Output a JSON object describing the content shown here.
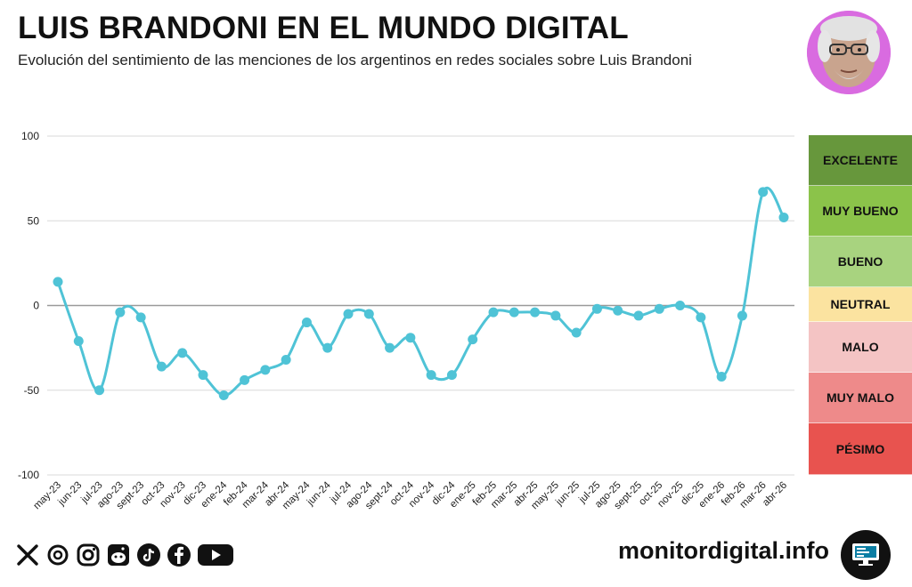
{
  "header": {
    "title": "LUIS BRANDONI EN EL MUNDO DIGITAL",
    "subtitle": "Evolución del sentimiento de las menciones de los argentinos en redes sociales sobre Luis Brandoni"
  },
  "chart_data": {
    "type": "line",
    "title": "LUIS BRANDONI EN EL MUNDO DIGITAL",
    "subtitle": "Evolución del sentimiento de las menciones de los argentinos en redes sociales sobre Luis Brandoni",
    "xlabel": "",
    "ylabel": "",
    "ylim": [
      -100,
      100
    ],
    "yticks": [
      100,
      50,
      0,
      -50,
      -100
    ],
    "grid": true,
    "line_color": "#4fc3d6",
    "categories": [
      "may-23",
      "jun-23",
      "jul-23",
      "ago-23",
      "sept-23",
      "oct-23",
      "nov-23",
      "dic-23",
      "ene-24",
      "feb-24",
      "mar-24",
      "abr-24",
      "may-24",
      "jun-24",
      "jul-24",
      "ago-24",
      "sept-24",
      "oct-24",
      "nov-24",
      "dic-24",
      "ene-25",
      "feb-25",
      "mar-25",
      "abr-25",
      "may-25",
      "jun-25",
      "jul-25",
      "ago-25",
      "sept-25",
      "oct-25",
      "nov-25",
      "dic-25",
      "ene-26",
      "feb-26",
      "mar-26",
      "abr-26"
    ],
    "values": [
      14,
      -21,
      -50,
      -4,
      -7,
      -36,
      -28,
      -41,
      -53,
      -44,
      -38,
      -32,
      -10,
      -25,
      -5,
      -5,
      -25,
      -19,
      -41,
      -41,
      -20,
      -4,
      -4,
      -4,
      -6,
      -16,
      -2,
      -3,
      -6,
      -2,
      0,
      -7,
      -42,
      -6,
      67,
      52
    ]
  },
  "legend": {
    "bands": [
      {
        "label": "EXCELENTE",
        "color": "#67973c"
      },
      {
        "label": "MUY BUENO",
        "color": "#8bc34a"
      },
      {
        "label": "BUENO",
        "color": "#a8d37f"
      },
      {
        "label": "NEUTRAL",
        "color": "#fbe3a0"
      },
      {
        "label": "MALO",
        "color": "#f4c4c4"
      },
      {
        "label": "MUY MALO",
        "color": "#ee8a8a"
      },
      {
        "label": "PÉSIMO",
        "color": "#e8534f"
      }
    ]
  },
  "footer": {
    "site": "monitordigital.info",
    "icons": [
      "x-icon",
      "threads-icon",
      "instagram-icon",
      "reddit-icon",
      "tiktok-icon",
      "facebook-icon",
      "youtube-icon"
    ]
  }
}
